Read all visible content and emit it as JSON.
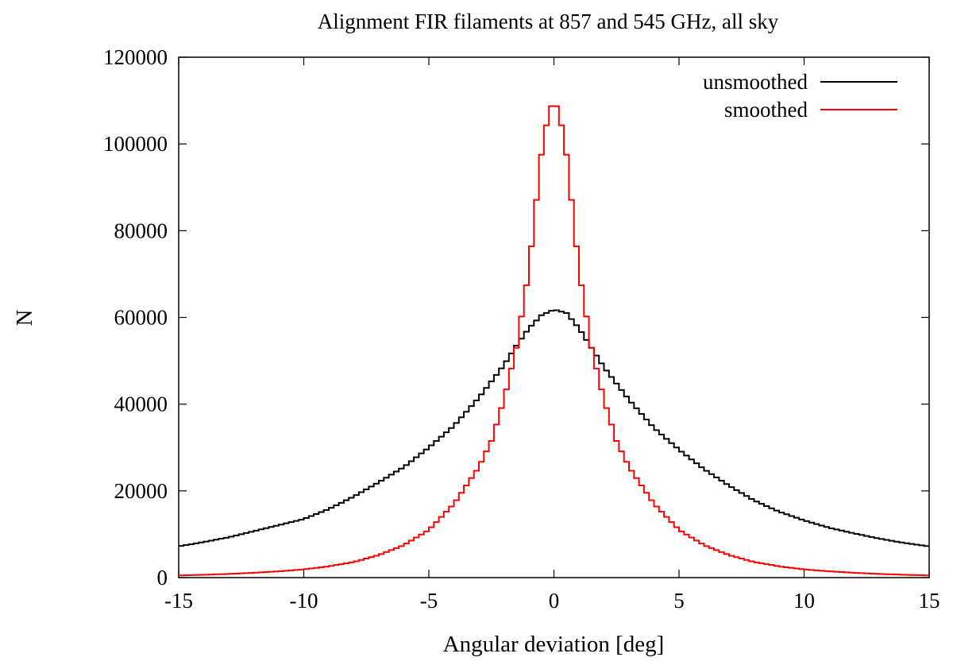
{
  "chart_data": {
    "type": "line",
    "title": "Alignment FIR filaments at 857 and 545 GHz, all sky",
    "xlabel": "Angular deviation [deg]",
    "ylabel": "N",
    "xlim": [
      -15,
      15
    ],
    "ylim": [
      0,
      120000
    ],
    "x_ticks": [
      -15,
      -10,
      -5,
      0,
      5,
      10,
      15
    ],
    "y_ticks": [
      0,
      20000,
      40000,
      60000,
      80000,
      100000,
      120000
    ],
    "step_style": true,
    "bin_width_deg": 0.2,
    "legend_position": "top-right",
    "grid": false,
    "series": [
      {
        "name": "unsmoothed",
        "color": "#000000",
        "x": [
          -15,
          -14,
          -13,
          -12,
          -11,
          -10,
          -9,
          -8,
          -7,
          -6,
          -5,
          -4,
          -3,
          -2,
          -1.5,
          -1,
          -0.5,
          0,
          0.5,
          1,
          1.5,
          2,
          3,
          4,
          5,
          6,
          7,
          8,
          9,
          10,
          11,
          12,
          13,
          14,
          15
        ],
        "y": [
          7200,
          8200,
          9300,
          10700,
          12100,
          13500,
          15800,
          18700,
          22000,
          25500,
          30000,
          35000,
          41500,
          49000,
          53500,
          57500,
          60500,
          61800,
          61000,
          57500,
          53000,
          48500,
          41000,
          34500,
          29500,
          25000,
          21200,
          17800,
          15200,
          13200,
          11500,
          10200,
          9000,
          8000,
          7200
        ]
      },
      {
        "name": "smoothed",
        "color": "#ff0000",
        "x": [
          -15,
          -14,
          -13,
          -12,
          -11,
          -10,
          -9,
          -8,
          -7,
          -6,
          -5,
          -4,
          -3,
          -2.5,
          -2,
          -1.5,
          -1,
          -0.75,
          -0.5,
          -0.25,
          0,
          0.25,
          0.5,
          0.75,
          1,
          1.5,
          2,
          2.5,
          3,
          4,
          5,
          6,
          7,
          8,
          9,
          10,
          11,
          12,
          13,
          14,
          15
        ],
        "y": [
          500,
          650,
          850,
          1100,
          1450,
          1900,
          2600,
          3600,
          5200,
          7500,
          11000,
          17000,
          25500,
          31500,
          41000,
          53000,
          71000,
          84500,
          97500,
          106000,
          110500,
          106000,
          97500,
          84500,
          71000,
          53000,
          41000,
          31500,
          25500,
          17000,
          11000,
          7500,
          5200,
          3600,
          2600,
          1900,
          1450,
          1100,
          850,
          650,
          500
        ]
      }
    ]
  }
}
